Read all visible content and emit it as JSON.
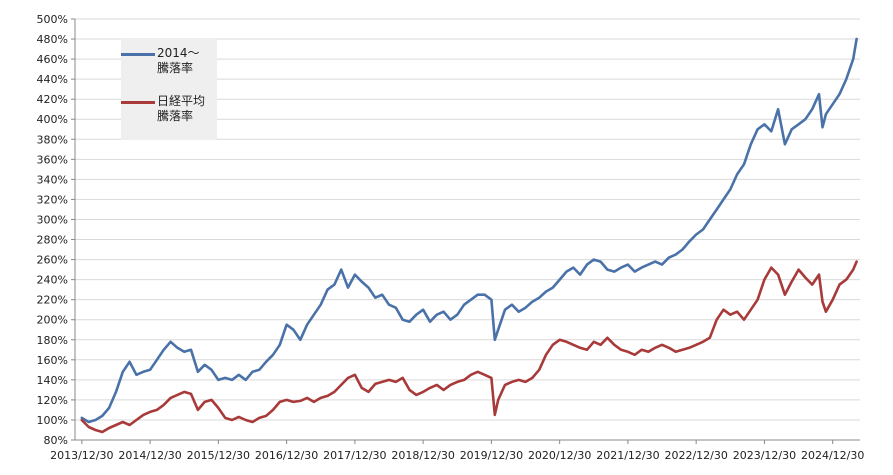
{
  "chart_data": {
    "type": "line",
    "title": "",
    "xlabel": "",
    "ylabel": "",
    "ylim": [
      80,
      500
    ],
    "y_ticks": [
      80,
      100,
      120,
      140,
      160,
      180,
      200,
      220,
      240,
      260,
      280,
      300,
      320,
      340,
      360,
      380,
      400,
      420,
      440,
      460,
      480,
      500
    ],
    "y_tick_labels": [
      "80%",
      "100%",
      "120%",
      "140%",
      "160%",
      "180%",
      "200%",
      "220%",
      "240%",
      "260%",
      "280%",
      "300%",
      "320%",
      "340%",
      "360%",
      "380%",
      "400%",
      "420%",
      "440%",
      "460%",
      "480%",
      "500%"
    ],
    "x_range": [
      2013.9,
      2025.4
    ],
    "x_ticks": [
      2014,
      2015,
      2016,
      2017,
      2018,
      2019,
      2020,
      2021,
      2022,
      2023,
      2024,
      2025
    ],
    "x_tick_labels": [
      "2013/12/30",
      "2014/12/30",
      "2015/12/30",
      "2016/12/30",
      "2017/12/30",
      "2018/12/30",
      "2019/12/30",
      "2020/12/30",
      "2021/12/30",
      "2022/12/30",
      "2023/12/30",
      "2024/12/30"
    ],
    "grid": "horizontal",
    "legend_position": "top-left",
    "series": [
      {
        "name": "2014～\n騰落率",
        "color": "#4a72a8",
        "points": [
          [
            2014.0,
            102
          ],
          [
            2014.1,
            98
          ],
          [
            2014.2,
            100
          ],
          [
            2014.3,
            104
          ],
          [
            2014.4,
            112
          ],
          [
            2014.5,
            128
          ],
          [
            2014.6,
            148
          ],
          [
            2014.7,
            158
          ],
          [
            2014.8,
            145
          ],
          [
            2014.9,
            148
          ],
          [
            2015.0,
            150
          ],
          [
            2015.1,
            160
          ],
          [
            2015.2,
            170
          ],
          [
            2015.3,
            178
          ],
          [
            2015.4,
            172
          ],
          [
            2015.5,
            168
          ],
          [
            2015.6,
            170
          ],
          [
            2015.7,
            148
          ],
          [
            2015.8,
            155
          ],
          [
            2015.9,
            150
          ],
          [
            2016.0,
            140
          ],
          [
            2016.1,
            142
          ],
          [
            2016.2,
            140
          ],
          [
            2016.3,
            145
          ],
          [
            2016.4,
            140
          ],
          [
            2016.5,
            148
          ],
          [
            2016.6,
            150
          ],
          [
            2016.7,
            158
          ],
          [
            2016.8,
            165
          ],
          [
            2016.9,
            175
          ],
          [
            2017.0,
            195
          ],
          [
            2017.1,
            190
          ],
          [
            2017.2,
            180
          ],
          [
            2017.3,
            195
          ],
          [
            2017.4,
            205
          ],
          [
            2017.5,
            215
          ],
          [
            2017.6,
            230
          ],
          [
            2017.7,
            235
          ],
          [
            2017.8,
            250
          ],
          [
            2017.9,
            232
          ],
          [
            2018.0,
            245
          ],
          [
            2018.1,
            238
          ],
          [
            2018.2,
            232
          ],
          [
            2018.3,
            222
          ],
          [
            2018.4,
            225
          ],
          [
            2018.5,
            215
          ],
          [
            2018.6,
            212
          ],
          [
            2018.7,
            200
          ],
          [
            2018.8,
            198
          ],
          [
            2018.9,
            205
          ],
          [
            2019.0,
            210
          ],
          [
            2019.1,
            198
          ],
          [
            2019.2,
            205
          ],
          [
            2019.3,
            208
          ],
          [
            2019.4,
            200
          ],
          [
            2019.5,
            205
          ],
          [
            2019.6,
            215
          ],
          [
            2019.7,
            220
          ],
          [
            2019.8,
            225
          ],
          [
            2019.9,
            225
          ],
          [
            2020.0,
            220
          ],
          [
            2020.05,
            180
          ],
          [
            2020.1,
            190
          ],
          [
            2020.2,
            210
          ],
          [
            2020.3,
            215
          ],
          [
            2020.4,
            208
          ],
          [
            2020.5,
            212
          ],
          [
            2020.6,
            218
          ],
          [
            2020.7,
            222
          ],
          [
            2020.8,
            228
          ],
          [
            2020.9,
            232
          ],
          [
            2021.0,
            240
          ],
          [
            2021.1,
            248
          ],
          [
            2021.2,
            252
          ],
          [
            2021.3,
            245
          ],
          [
            2021.4,
            255
          ],
          [
            2021.5,
            260
          ],
          [
            2021.6,
            258
          ],
          [
            2021.7,
            250
          ],
          [
            2021.8,
            248
          ],
          [
            2021.9,
            252
          ],
          [
            2022.0,
            255
          ],
          [
            2022.1,
            248
          ],
          [
            2022.2,
            252
          ],
          [
            2022.3,
            255
          ],
          [
            2022.4,
            258
          ],
          [
            2022.5,
            255
          ],
          [
            2022.6,
            262
          ],
          [
            2022.7,
            265
          ],
          [
            2022.8,
            270
          ],
          [
            2022.9,
            278
          ],
          [
            2023.0,
            285
          ],
          [
            2023.1,
            290
          ],
          [
            2023.2,
            300
          ],
          [
            2023.3,
            310
          ],
          [
            2023.4,
            320
          ],
          [
            2023.5,
            330
          ],
          [
            2023.6,
            345
          ],
          [
            2023.7,
            355
          ],
          [
            2023.8,
            375
          ],
          [
            2023.9,
            390
          ],
          [
            2024.0,
            395
          ],
          [
            2024.1,
            388
          ],
          [
            2024.2,
            410
          ],
          [
            2024.3,
            375
          ],
          [
            2024.4,
            390
          ],
          [
            2024.5,
            395
          ],
          [
            2024.6,
            400
          ],
          [
            2024.7,
            410
          ],
          [
            2024.8,
            425
          ],
          [
            2024.85,
            392
          ],
          [
            2024.9,
            405
          ],
          [
            2025.0,
            415
          ],
          [
            2025.1,
            425
          ],
          [
            2025.2,
            440
          ],
          [
            2025.3,
            460
          ],
          [
            2025.35,
            480
          ]
        ]
      },
      {
        "name": "日経平均\n騰落率",
        "color": "#a83a3a",
        "points": [
          [
            2014.0,
            100
          ],
          [
            2014.1,
            93
          ],
          [
            2014.2,
            90
          ],
          [
            2014.3,
            88
          ],
          [
            2014.4,
            92
          ],
          [
            2014.5,
            95
          ],
          [
            2014.6,
            98
          ],
          [
            2014.7,
            95
          ],
          [
            2014.8,
            100
          ],
          [
            2014.9,
            105
          ],
          [
            2015.0,
            108
          ],
          [
            2015.1,
            110
          ],
          [
            2015.2,
            115
          ],
          [
            2015.3,
            122
          ],
          [
            2015.4,
            125
          ],
          [
            2015.5,
            128
          ],
          [
            2015.6,
            126
          ],
          [
            2015.7,
            110
          ],
          [
            2015.8,
            118
          ],
          [
            2015.9,
            120
          ],
          [
            2016.0,
            112
          ],
          [
            2016.1,
            102
          ],
          [
            2016.2,
            100
          ],
          [
            2016.3,
            103
          ],
          [
            2016.4,
            100
          ],
          [
            2016.5,
            98
          ],
          [
            2016.6,
            102
          ],
          [
            2016.7,
            104
          ],
          [
            2016.8,
            110
          ],
          [
            2016.9,
            118
          ],
          [
            2017.0,
            120
          ],
          [
            2017.1,
            118
          ],
          [
            2017.2,
            119
          ],
          [
            2017.3,
            122
          ],
          [
            2017.4,
            118
          ],
          [
            2017.5,
            122
          ],
          [
            2017.6,
            124
          ],
          [
            2017.7,
            128
          ],
          [
            2017.8,
            135
          ],
          [
            2017.9,
            142
          ],
          [
            2018.0,
            145
          ],
          [
            2018.1,
            132
          ],
          [
            2018.2,
            128
          ],
          [
            2018.3,
            136
          ],
          [
            2018.4,
            138
          ],
          [
            2018.5,
            140
          ],
          [
            2018.6,
            138
          ],
          [
            2018.7,
            142
          ],
          [
            2018.8,
            130
          ],
          [
            2018.9,
            125
          ],
          [
            2019.0,
            128
          ],
          [
            2019.1,
            132
          ],
          [
            2019.2,
            135
          ],
          [
            2019.3,
            130
          ],
          [
            2019.4,
            135
          ],
          [
            2019.5,
            138
          ],
          [
            2019.6,
            140
          ],
          [
            2019.7,
            145
          ],
          [
            2019.8,
            148
          ],
          [
            2019.9,
            145
          ],
          [
            2020.0,
            142
          ],
          [
            2020.05,
            105
          ],
          [
            2020.1,
            120
          ],
          [
            2020.2,
            135
          ],
          [
            2020.3,
            138
          ],
          [
            2020.4,
            140
          ],
          [
            2020.5,
            138
          ],
          [
            2020.6,
            142
          ],
          [
            2020.7,
            150
          ],
          [
            2020.8,
            165
          ],
          [
            2020.9,
            175
          ],
          [
            2021.0,
            180
          ],
          [
            2021.1,
            178
          ],
          [
            2021.2,
            175
          ],
          [
            2021.3,
            172
          ],
          [
            2021.4,
            170
          ],
          [
            2021.5,
            178
          ],
          [
            2021.6,
            175
          ],
          [
            2021.7,
            182
          ],
          [
            2021.8,
            175
          ],
          [
            2021.9,
            170
          ],
          [
            2022.0,
            168
          ],
          [
            2022.1,
            165
          ],
          [
            2022.2,
            170
          ],
          [
            2022.3,
            168
          ],
          [
            2022.4,
            172
          ],
          [
            2022.5,
            175
          ],
          [
            2022.6,
            172
          ],
          [
            2022.7,
            168
          ],
          [
            2022.8,
            170
          ],
          [
            2022.9,
            172
          ],
          [
            2023.0,
            175
          ],
          [
            2023.1,
            178
          ],
          [
            2023.2,
            182
          ],
          [
            2023.3,
            200
          ],
          [
            2023.4,
            210
          ],
          [
            2023.5,
            205
          ],
          [
            2023.6,
            208
          ],
          [
            2023.7,
            200
          ],
          [
            2023.8,
            210
          ],
          [
            2023.9,
            220
          ],
          [
            2024.0,
            240
          ],
          [
            2024.1,
            252
          ],
          [
            2024.2,
            245
          ],
          [
            2024.3,
            225
          ],
          [
            2024.4,
            238
          ],
          [
            2024.5,
            250
          ],
          [
            2024.6,
            242
          ],
          [
            2024.7,
            235
          ],
          [
            2024.8,
            245
          ],
          [
            2024.85,
            218
          ],
          [
            2024.9,
            208
          ],
          [
            2025.0,
            220
          ],
          [
            2025.1,
            235
          ],
          [
            2025.2,
            240
          ],
          [
            2025.3,
            250
          ],
          [
            2025.35,
            258
          ]
        ]
      }
    ]
  }
}
